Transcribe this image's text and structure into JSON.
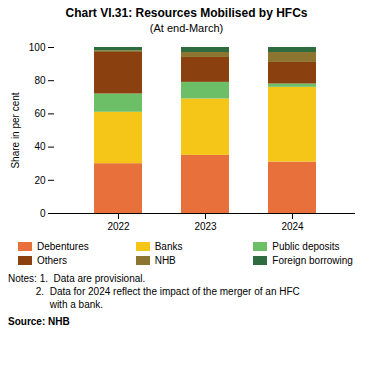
{
  "chart_data": {
    "type": "bar",
    "stacked": true,
    "title": "Chart VI.31: Resources Mobilised by HFCs",
    "subtitle": "(At end-March)",
    "categories": [
      "2022",
      "2023",
      "2024"
    ],
    "series": [
      {
        "name": "Debentures",
        "color": "#E8703A",
        "values": [
          30,
          35,
          31
        ]
      },
      {
        "name": "Banks",
        "color": "#F5C518",
        "values": [
          31,
          34,
          45
        ]
      },
      {
        "name": "Public deposits",
        "color": "#6DBF67",
        "values": [
          11,
          10,
          2
        ]
      },
      {
        "name": "Others",
        "color": "#8B4010",
        "values": [
          25,
          15,
          13
        ]
      },
      {
        "name": "NHB",
        "color": "#8B7530",
        "values": [
          1,
          3,
          6
        ]
      },
      {
        "name": "Foreign borrowing",
        "color": "#2E6B3E",
        "values": [
          2,
          3,
          3
        ]
      }
    ],
    "ylabel": "Share in per cent",
    "ylim": [
      0,
      100
    ],
    "yticks": [
      0,
      20,
      40,
      60,
      80,
      100
    ],
    "grid": false,
    "legend": "bottom",
    "annotations": [
      "Notes: 1.  Data are provisional.",
      "          2.  Data for 2024 reflect the impact of the merger of an HFC",
      "               with a bank."
    ],
    "source": "Source: NHB"
  }
}
